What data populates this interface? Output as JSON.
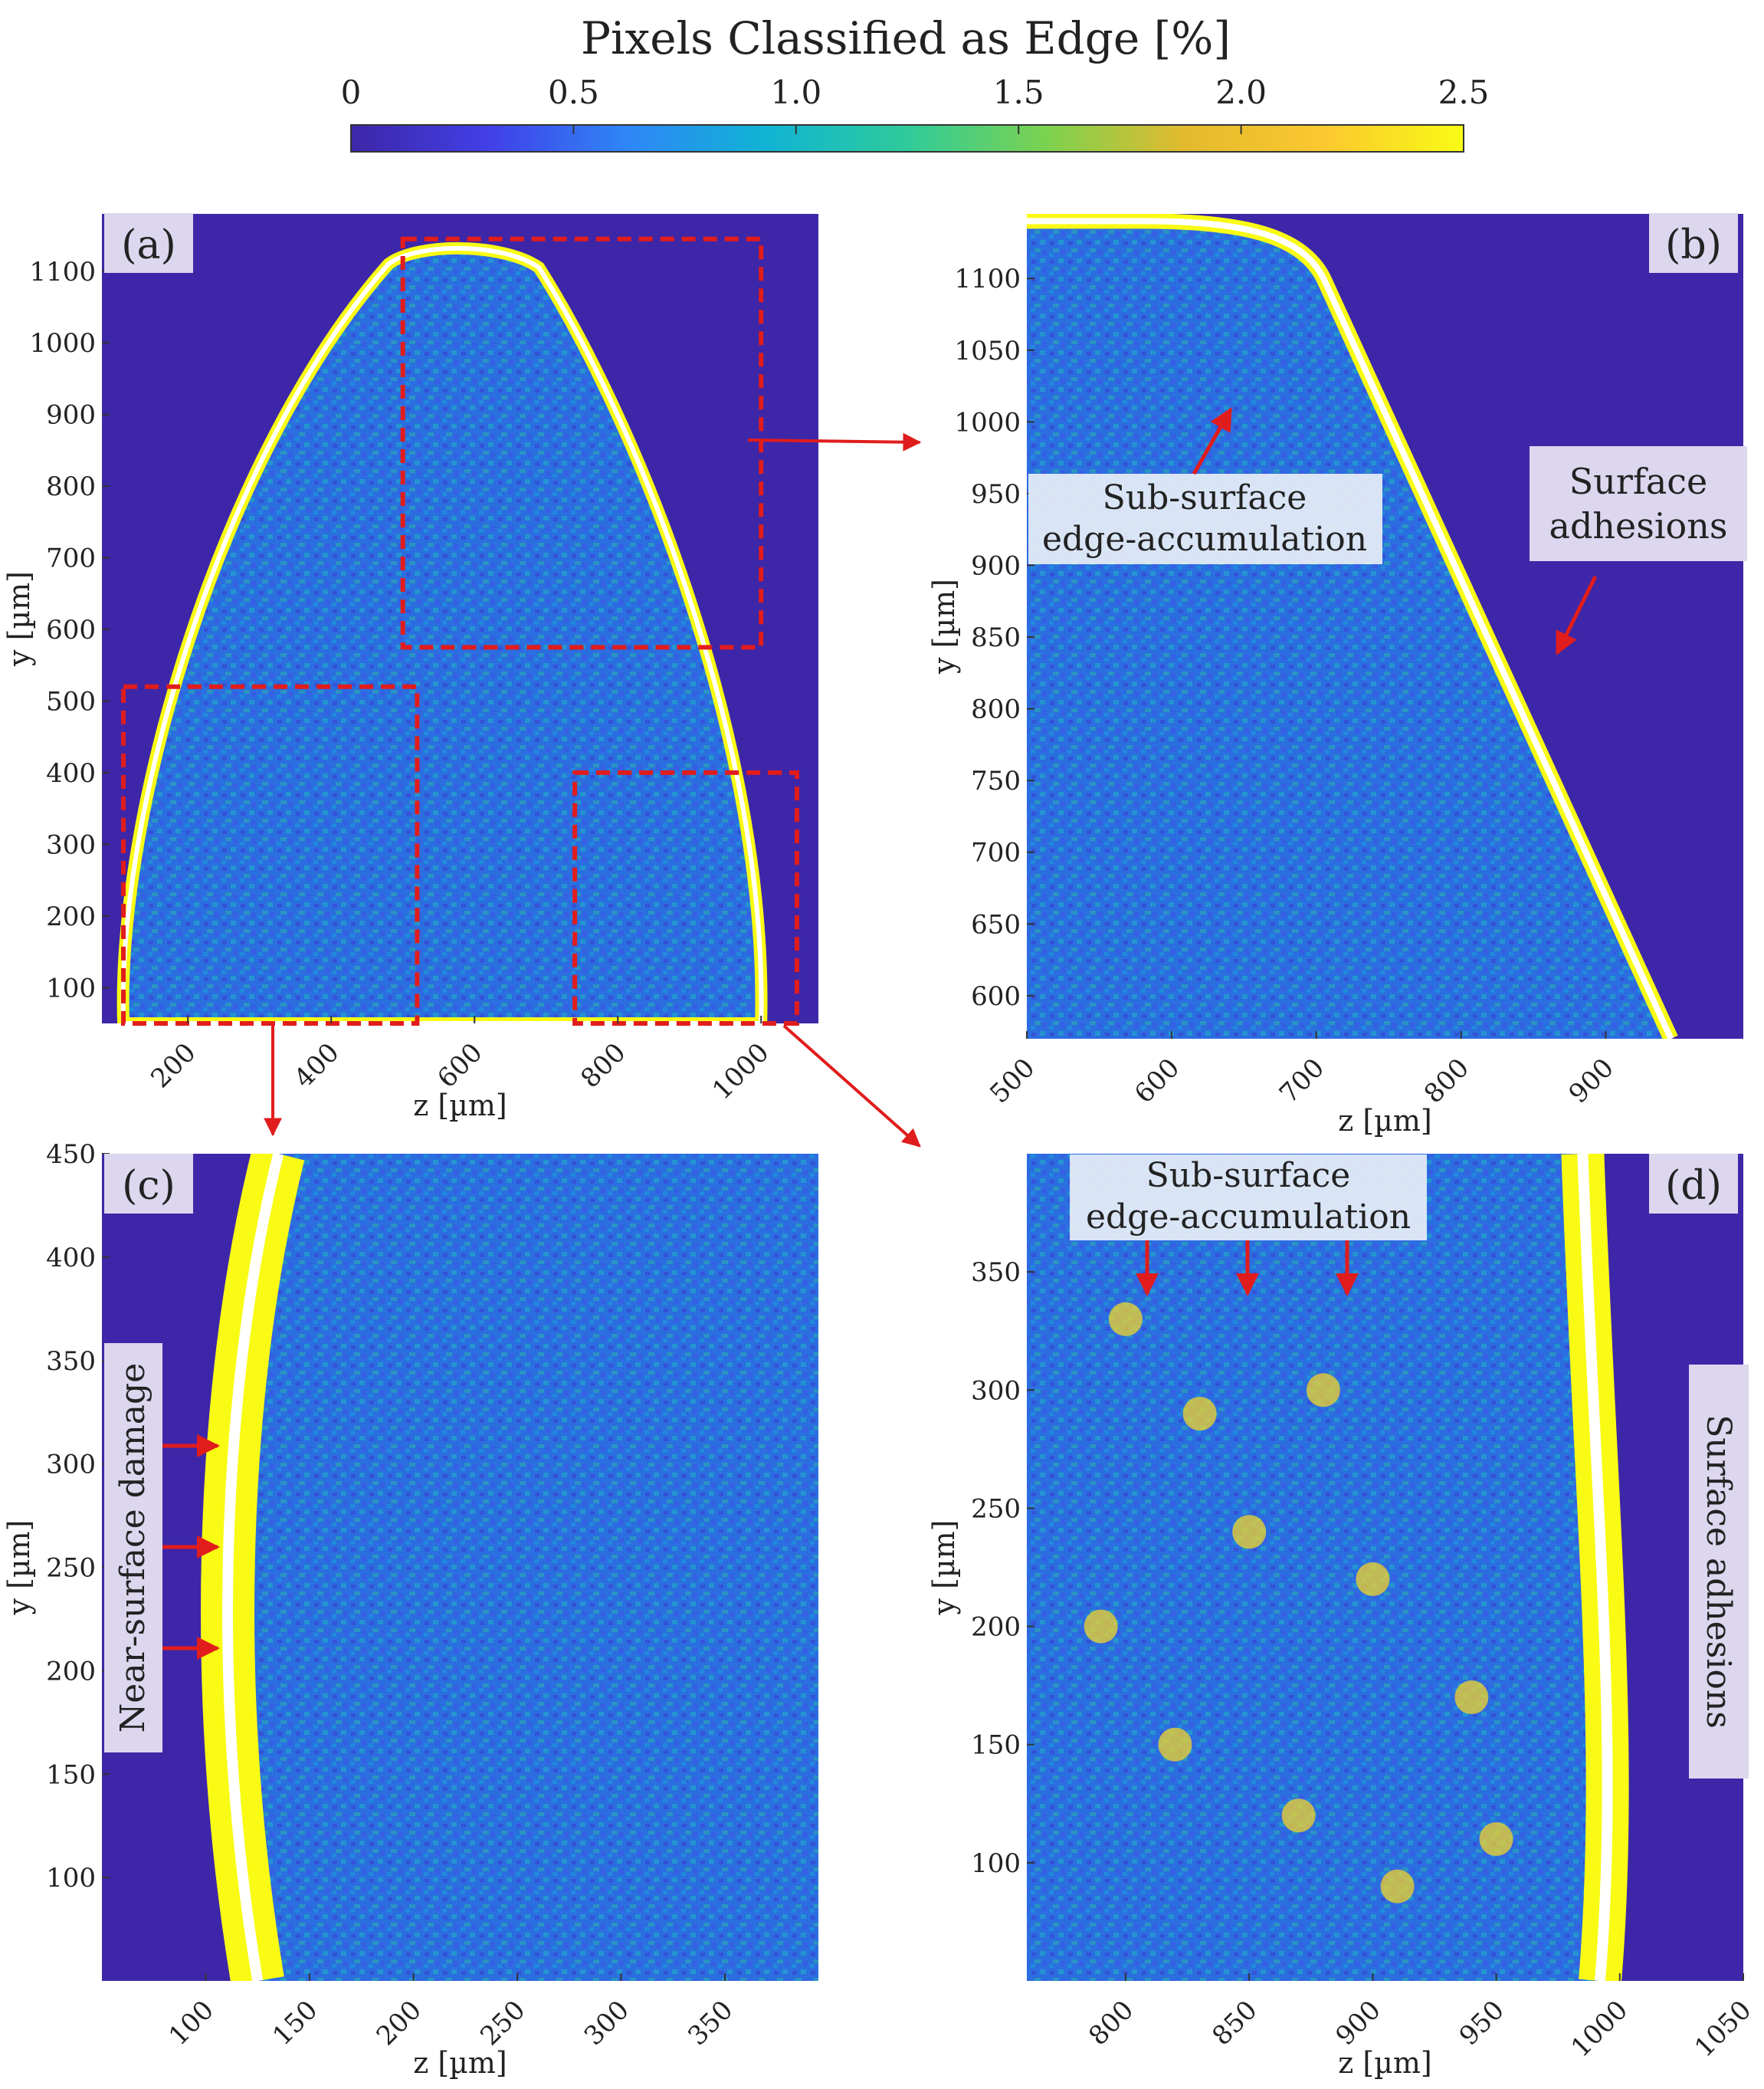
{
  "colorbar": {
    "title": "Pixels Classified as Edge [%]",
    "ticks": [
      "0",
      "0.5",
      "1.0",
      "1.5",
      "2.0",
      "2.5"
    ],
    "colormap": [
      "#3e26a8",
      "#4140e7",
      "#2e87f7",
      "#10b4d3",
      "#2fcb9a",
      "#7cd24f",
      "#e3ba2e",
      "#fbc82f",
      "#f9fb15"
    ]
  },
  "colors": {
    "background": "#3e26a8",
    "field": "#2b6ee0",
    "outline": "#ffffff",
    "highlight_box": "#e11c1c",
    "arrow": "#e11c1c",
    "label_box": "#dcd6ee"
  },
  "chart_data": [
    {
      "type": "heatmap",
      "panel": "(a)",
      "xlabel": "z [µm]",
      "ylabel": "y [µm]",
      "xlim": [
        80,
        1080
      ],
      "ylim": [
        50,
        1180
      ],
      "xticks": [
        "200",
        "400",
        "600",
        "800",
        "1000"
      ],
      "yticks": [
        "100",
        "200",
        "300",
        "400",
        "500",
        "600",
        "700",
        "800",
        "900",
        "1000",
        "1100"
      ],
      "zoom_boxes": [
        {
          "target": "(b)",
          "z": [
            500,
            1000
          ],
          "y": [
            575,
            1145
          ]
        },
        {
          "target": "(c)",
          "z": [
            110,
            520
          ],
          "y": [
            50,
            520
          ]
        },
        {
          "target": "(d)",
          "z": [
            740,
            1050
          ],
          "y": [
            50,
            400
          ]
        }
      ]
    },
    {
      "type": "heatmap",
      "panel": "(b)",
      "xlabel": "z [µm]",
      "ylabel": "y [µm]",
      "xlim": [
        500,
        995
      ],
      "ylim": [
        570,
        1145
      ],
      "xticks": [
        "500",
        "600",
        "700",
        "800",
        "900"
      ],
      "yticks": [
        "600",
        "650",
        "700",
        "750",
        "800",
        "850",
        "900",
        "950",
        "1000",
        "1050",
        "1100"
      ],
      "annotations": [
        "Sub-surface edge-accumulation",
        "Surface adhesions"
      ]
    },
    {
      "type": "heatmap",
      "panel": "(c)",
      "xlabel": "z [µm]",
      "ylabel": "y [µm]",
      "xlim": [
        50,
        395
      ],
      "ylim": [
        50,
        450
      ],
      "xticks": [
        "100",
        "150",
        "200",
        "250",
        "300",
        "350"
      ],
      "yticks": [
        "100",
        "150",
        "200",
        "250",
        "300",
        "350",
        "400",
        "450"
      ],
      "annotations": [
        "Near-surface damage"
      ]
    },
    {
      "type": "heatmap",
      "panel": "(d)",
      "xlabel": "z [µm]",
      "ylabel": "y [µm]",
      "xlim": [
        760,
        1050
      ],
      "ylim": [
        50,
        400
      ],
      "xticks": [
        "800",
        "850",
        "900",
        "950",
        "1000",
        "1050"
      ],
      "yticks": [
        "100",
        "150",
        "200",
        "250",
        "300",
        "350"
      ],
      "annotations": [
        "Sub-surface edge-accumulation",
        "Surface adhesions"
      ]
    }
  ],
  "annotations": {
    "b_sub": [
      "Sub-surface",
      "edge-accumulation"
    ],
    "b_adh": [
      "Surface",
      "adhesions"
    ],
    "c_damage": "Near-surface damage",
    "d_sub": [
      "Sub-surface",
      "edge-accumulation"
    ],
    "d_adh": "Surface adhesions"
  }
}
